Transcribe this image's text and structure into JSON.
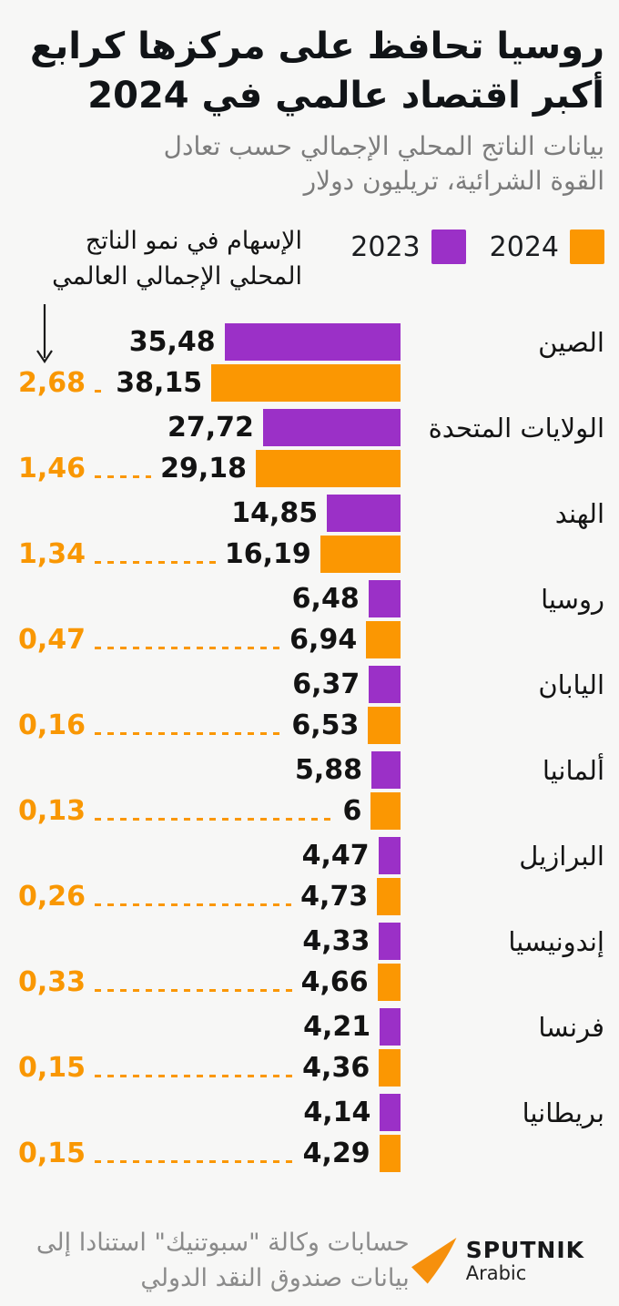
{
  "header": {
    "title_line1": "روسيا تحافظ على مركزها كرابع",
    "title_line2": "أكبر اقتصاد عالمي في 2024",
    "subtitle_line1": "بيانات الناتج المحلي الإجمالي حسب تعادل",
    "subtitle_line2": "القوة الشرائية، تريليون دولار"
  },
  "legend": {
    "items": [
      {
        "label": "2024",
        "color": "#fb9702"
      },
      {
        "label": "2023",
        "color": "#9b30c7"
      }
    ]
  },
  "annotation": {
    "line1": "الإسهام في نمو الناتج",
    "line2": "المحلي الإجمالي العالمي"
  },
  "colors": {
    "background": "#f7f7f6",
    "bar_2023": "#9b30c7",
    "bar_2024": "#fb9702",
    "contribution_text": "#f99702",
    "subtitle_gray": "#7c7c7c",
    "source_gray": "#8b8b8b"
  },
  "chart_data": {
    "type": "bar",
    "orientation": "horizontal",
    "title": "روسيا تحافظ على مركزها كرابع أكبر اقتصاد عالمي في 2024",
    "subtitle": "بيانات الناتج المحلي الإجمالي حسب تعادل القوة الشرائية، تريليون دولار",
    "legend_position": "top-right",
    "grid": false,
    "xlim": [
      0,
      40
    ],
    "categories": [
      "الصين",
      "الولايات المتحدة",
      "الهند",
      "روسيا",
      "اليابان",
      "ألمانيا",
      "البرازيل",
      "إندونيسيا",
      "فرنسا",
      "بريطانيا"
    ],
    "series": [
      {
        "name": "2023",
        "color": "#9b30c7",
        "values": [
          35.48,
          27.72,
          14.85,
          6.48,
          6.37,
          5.88,
          4.47,
          4.33,
          4.21,
          4.14
        ],
        "labels": [
          "35,48",
          "27,72",
          "14,85",
          "6,48",
          "6,37",
          "5,88",
          "4,47",
          "4,33",
          "4,21",
          "4,14"
        ]
      },
      {
        "name": "2024",
        "color": "#fb9702",
        "values": [
          38.15,
          29.18,
          16.19,
          6.94,
          6.53,
          6,
          4.73,
          4.66,
          4.36,
          4.29
        ],
        "labels": [
          "38,15",
          "29,18",
          "16,19",
          "6,94",
          "6,53",
          "6",
          "4,73",
          "4,66",
          "4,36",
          "4,29"
        ]
      }
    ],
    "growth_contribution": {
      "name": "الإسهام في نمو الناتج المحلي الإجمالي العالمي",
      "values": [
        2.68,
        1.46,
        1.34,
        0.47,
        0.16,
        0.13,
        0.26,
        0.33,
        0.15,
        0.15
      ],
      "labels": [
        "2,68",
        "1,46",
        "1,34",
        "0,47",
        "0,16",
        "0,13",
        "0,26",
        "0,33",
        "0,15",
        "0,15"
      ]
    }
  },
  "footer": {
    "source_line1": "حسابات وكالة \"سبوتنيك\" استنادا إلى",
    "source_line2": "بيانات صندوق النقد الدولي",
    "brand": "SPUTNIK",
    "brand_sub": "Arabic"
  }
}
